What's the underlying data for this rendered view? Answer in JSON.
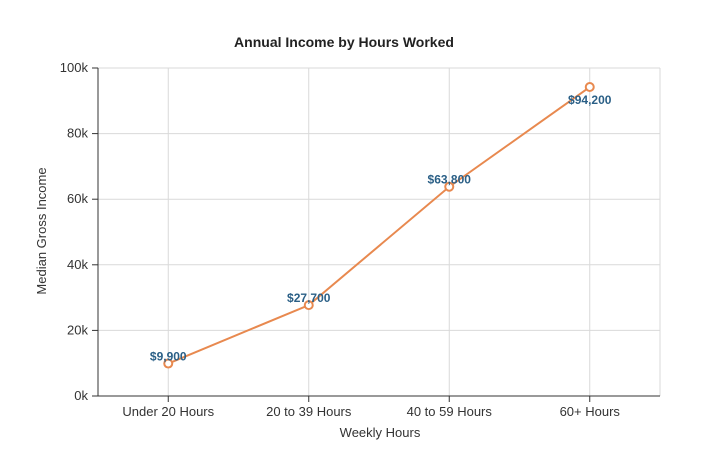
{
  "chart_data": {
    "type": "line",
    "title": "Annual Income by Hours Worked",
    "xlabel": "Weekly Hours",
    "ylabel": "Median Gross Income",
    "categories": [
      "Under 20 Hours",
      "20 to 39 Hours",
      "40 to 59 Hours",
      "60+ Hours"
    ],
    "series": [
      {
        "values": [
          9900,
          27700,
          63800,
          94200
        ],
        "data_labels": [
          "$9,900",
          "$27,700",
          "$63,800",
          "$94,200"
        ],
        "color": "#e8894f"
      }
    ],
    "ylim": [
      0,
      100000
    ],
    "yticks": [
      0,
      20000,
      40000,
      60000,
      80000,
      100000
    ],
    "ytick_labels": [
      "0k",
      "20k",
      "40k",
      "60k",
      "80k",
      "100k"
    ],
    "grid": true,
    "legend": "none",
    "colors": {
      "line": "#e8894f",
      "label": "#2a5f86",
      "grid": "#d9d9d9"
    }
  }
}
